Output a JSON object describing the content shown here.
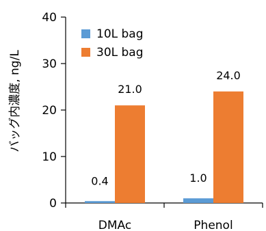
{
  "chart_data": {
    "type": "bar",
    "categories": [
      "DMAc",
      "Phenol"
    ],
    "series": [
      {
        "name": "10L bag",
        "values": [
          0.4,
          1.0
        ],
        "labels": [
          "0.4",
          "1.0"
        ],
        "color": "#5B9BD5"
      },
      {
        "name": "30L bag",
        "values": [
          21.0,
          24.0
        ],
        "labels": [
          "21.0",
          "24.0"
        ],
        "color": "#ED7D31"
      }
    ],
    "ylabel": "バッグ内濃度, ng/L",
    "ylim": [
      0,
      40
    ],
    "yticks": [
      "0",
      "10",
      "20",
      "30",
      "40"
    ],
    "grid": false,
    "legend": "top-left"
  }
}
